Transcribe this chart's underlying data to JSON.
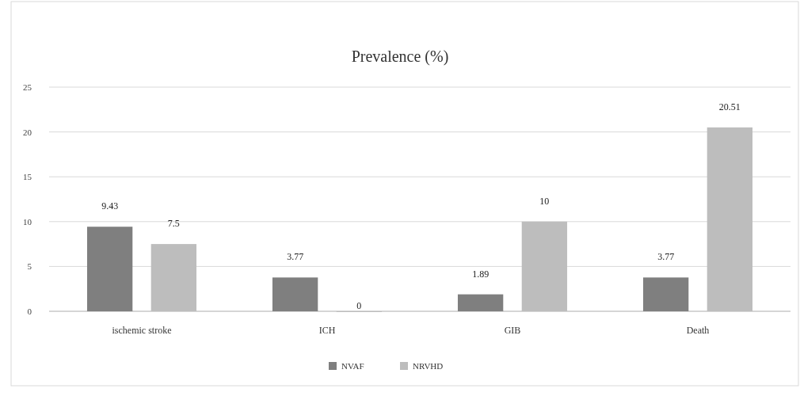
{
  "chart_data": {
    "type": "bar",
    "title": "Prevalence (%)",
    "categories": [
      "ischemic stroke",
      "ICH",
      "GIB",
      "Death"
    ],
    "series": [
      {
        "name": "NVAF",
        "color": "#7f7f7f",
        "values": [
          9.43,
          3.77,
          1.89,
          3.77
        ]
      },
      {
        "name": "NRVHD",
        "color": "#bdbdbd",
        "values": [
          7.5,
          0,
          10,
          20.51
        ]
      }
    ],
    "ylim": [
      0,
      25
    ],
    "yticks": [
      0,
      5,
      10,
      15,
      20,
      25
    ],
    "grid": "y",
    "legend": "bottom",
    "data_labels": true
  }
}
